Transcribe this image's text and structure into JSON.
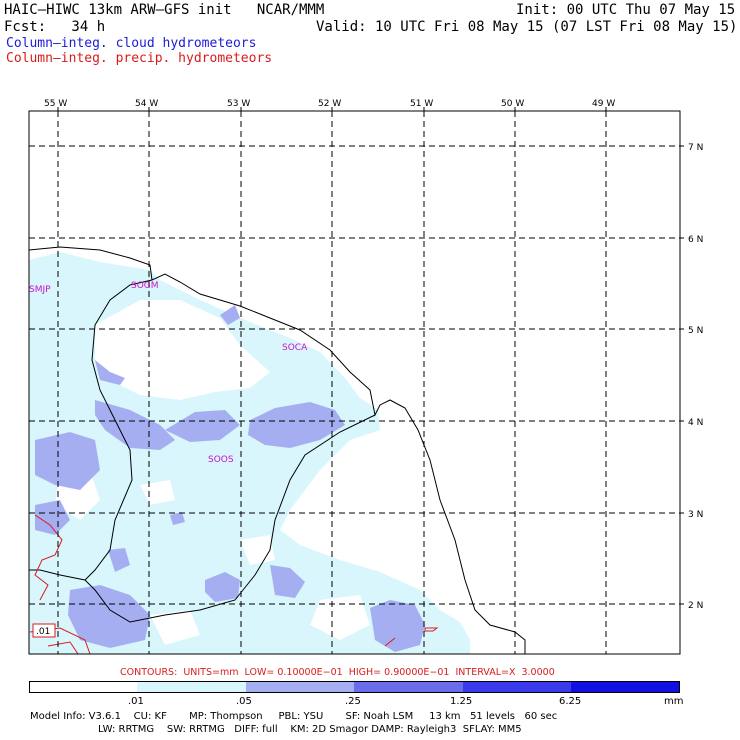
{
  "header": {
    "model_line": "HAIC–HIWC 13km ARW–GFS init   NCAR/MMM",
    "fcst_line": "Fcst:   34 h",
    "init_line": "Init: 00 UTC Thu 07 May 15",
    "valid_line": "Valid: 10 UTC Fri 08 May 15 (07 LST Fri 08 May 15)"
  },
  "legend": {
    "cloud": "Column–integ. cloud hydrometeors",
    "precip": "Column–integ. precip. hydrometeors",
    "cloud_color": "#1c1cd8",
    "precip_color": "#d81c1c"
  },
  "map": {
    "lon_labels": [
      "55 W",
      "54 W",
      "53 W",
      "52 W",
      "51 W",
      "50 W",
      "49 W"
    ],
    "lat_labels": [
      "7 N",
      "6 N",
      "5 N",
      "4 N",
      "3 N",
      "2 N"
    ],
    "stations": [
      "SMJP",
      "SOGM",
      "SOCA",
      "SOOS"
    ],
    "contour_box_label": ".01"
  },
  "contours_text": "CONTOURS:  UNITS=mm  LOW= 0.10000E−01  HIGH= 0.90000E−01  INTERVAL=X  3.0000",
  "colorbar": {
    "levels": [
      ".01",
      ".05",
      ".25",
      "1.25",
      "6.25"
    ],
    "units": "mm",
    "colors": [
      "#ffffff",
      "#d8f6fc",
      "#a6aef2",
      "#6a6cec",
      "#3a3aea",
      "#1010e0"
    ]
  },
  "footer": {
    "line1": "Model Info: V3.6.1    CU: KF       MP: Thompson     PBL: YSU       SF: Noah LSM     13 km   51 levels   60 sec",
    "line2": "LW: RRTMG    SW: RRTMG   DIFF: full    KM: 2D Smagor DAMP: Rayleigh3  SFLAY: MM5"
  }
}
